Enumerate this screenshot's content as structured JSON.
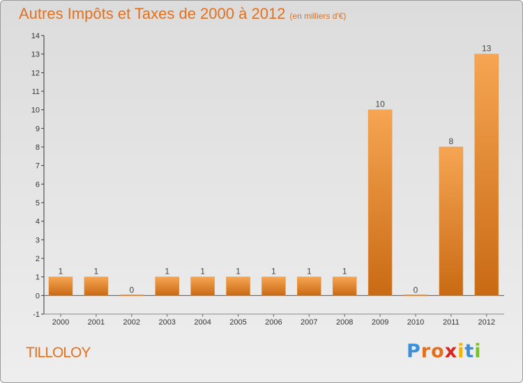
{
  "header": {
    "title": "Autres Impôts et Taxes de 2000 à 2012",
    "subtitle": "(en milliers d'€)"
  },
  "commune": "TILLOLOY",
  "logo": {
    "text": "Proxiti",
    "colors": [
      "#3a8fd8",
      "#e2701d",
      "#e2701d",
      "#d8261e",
      "#f2b400",
      "#3a8fd8",
      "#7bbf2a"
    ]
  },
  "chart_data": {
    "type": "bar",
    "categories": [
      "2000",
      "2001",
      "2002",
      "2003",
      "2004",
      "2005",
      "2006",
      "2007",
      "2008",
      "2009",
      "2010",
      "2011",
      "2012"
    ],
    "values": [
      1,
      1,
      0,
      1,
      1,
      1,
      1,
      1,
      1,
      10,
      0,
      8,
      13
    ],
    "value_labels": [
      "1",
      "1",
      "0",
      "1",
      "1",
      "1",
      "1",
      "1",
      "1",
      "10",
      "0",
      "8",
      "13"
    ],
    "yticks": [
      "-1",
      "0",
      "1",
      "2",
      "3",
      "4",
      "5",
      "6",
      "7",
      "8",
      "9",
      "10",
      "11",
      "12",
      "13",
      "14"
    ],
    "ylim": [
      -1,
      14
    ],
    "title": "Autres Impôts et Taxes de 2000 à 2012",
    "xlabel": "",
    "ylabel": "",
    "grid": false,
    "bar_color": "#f0923a"
  }
}
